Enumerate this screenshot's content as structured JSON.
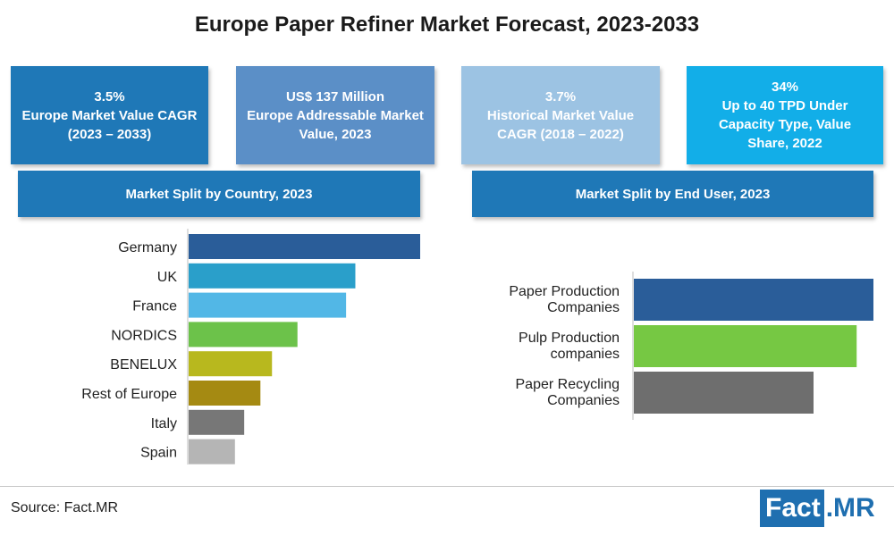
{
  "title": "Europe Paper Refiner Market Forecast, 2023-2033",
  "kpis": [
    {
      "line1": "3.5%",
      "line2": "Europe Market Value CAGR",
      "line3": "(2023 – 2033)"
    },
    {
      "line1": "US$ 137 Million",
      "line2": "Europe Addressable Market",
      "line3": "Value, 2023"
    },
    {
      "line1": "3.7%",
      "line2": "Historical Market Value",
      "line3": "CAGR (2018 – 2022)"
    },
    {
      "line1": "34%",
      "line2": "Up to 40 TPD Under",
      "line3": "Capacity Type, Value",
      "line4": "Share, 2022"
    }
  ],
  "colors": {
    "kpi1": "#1f78b7",
    "kpi2": "#5b8fc7",
    "kpi3": "#9cc3e3",
    "kpi4": "#12aee8",
    "banner": "#1f78b7"
  },
  "country_banner": "Market Split by Country, 2023",
  "enduser_banner": "Market Split by End User, 2023",
  "source": "Source: Fact.MR",
  "logo": {
    "part1": "Fact",
    "part2": ".MR"
  },
  "chart_data": [
    {
      "type": "bar",
      "orientation": "horizontal",
      "categories": [
        "Germany",
        "UK",
        "France",
        "NORDICS",
        "BENELUX",
        "Rest of Europe",
        "Italy",
        "Spain"
      ],
      "values": [
        100,
        72,
        68,
        47,
        36,
        31,
        24,
        20
      ],
      "colors": [
        "#2a5d99",
        "#2a9fca",
        "#52b7e6",
        "#6cc24a",
        "#b8b81e",
        "#a58a12",
        "#777777",
        "#b5b5b5"
      ],
      "xlim": [
        0,
        100
      ],
      "grid": false,
      "axis_tick_labels": false
    },
    {
      "type": "bar",
      "orientation": "horizontal",
      "categories": [
        "Paper Production Companies",
        "Pulp Production companies",
        "Paper Recycling Companies"
      ],
      "category_lines": [
        [
          "Paper Production",
          "Companies"
        ],
        [
          "Pulp Production",
          "companies"
        ],
        [
          "Paper Recycling",
          "Companies"
        ]
      ],
      "values": [
        100,
        93,
        75
      ],
      "colors": [
        "#2a5d99",
        "#76c843",
        "#6e6e6e"
      ],
      "xlim": [
        0,
        100
      ],
      "grid": false,
      "axis_tick_labels": false
    }
  ]
}
